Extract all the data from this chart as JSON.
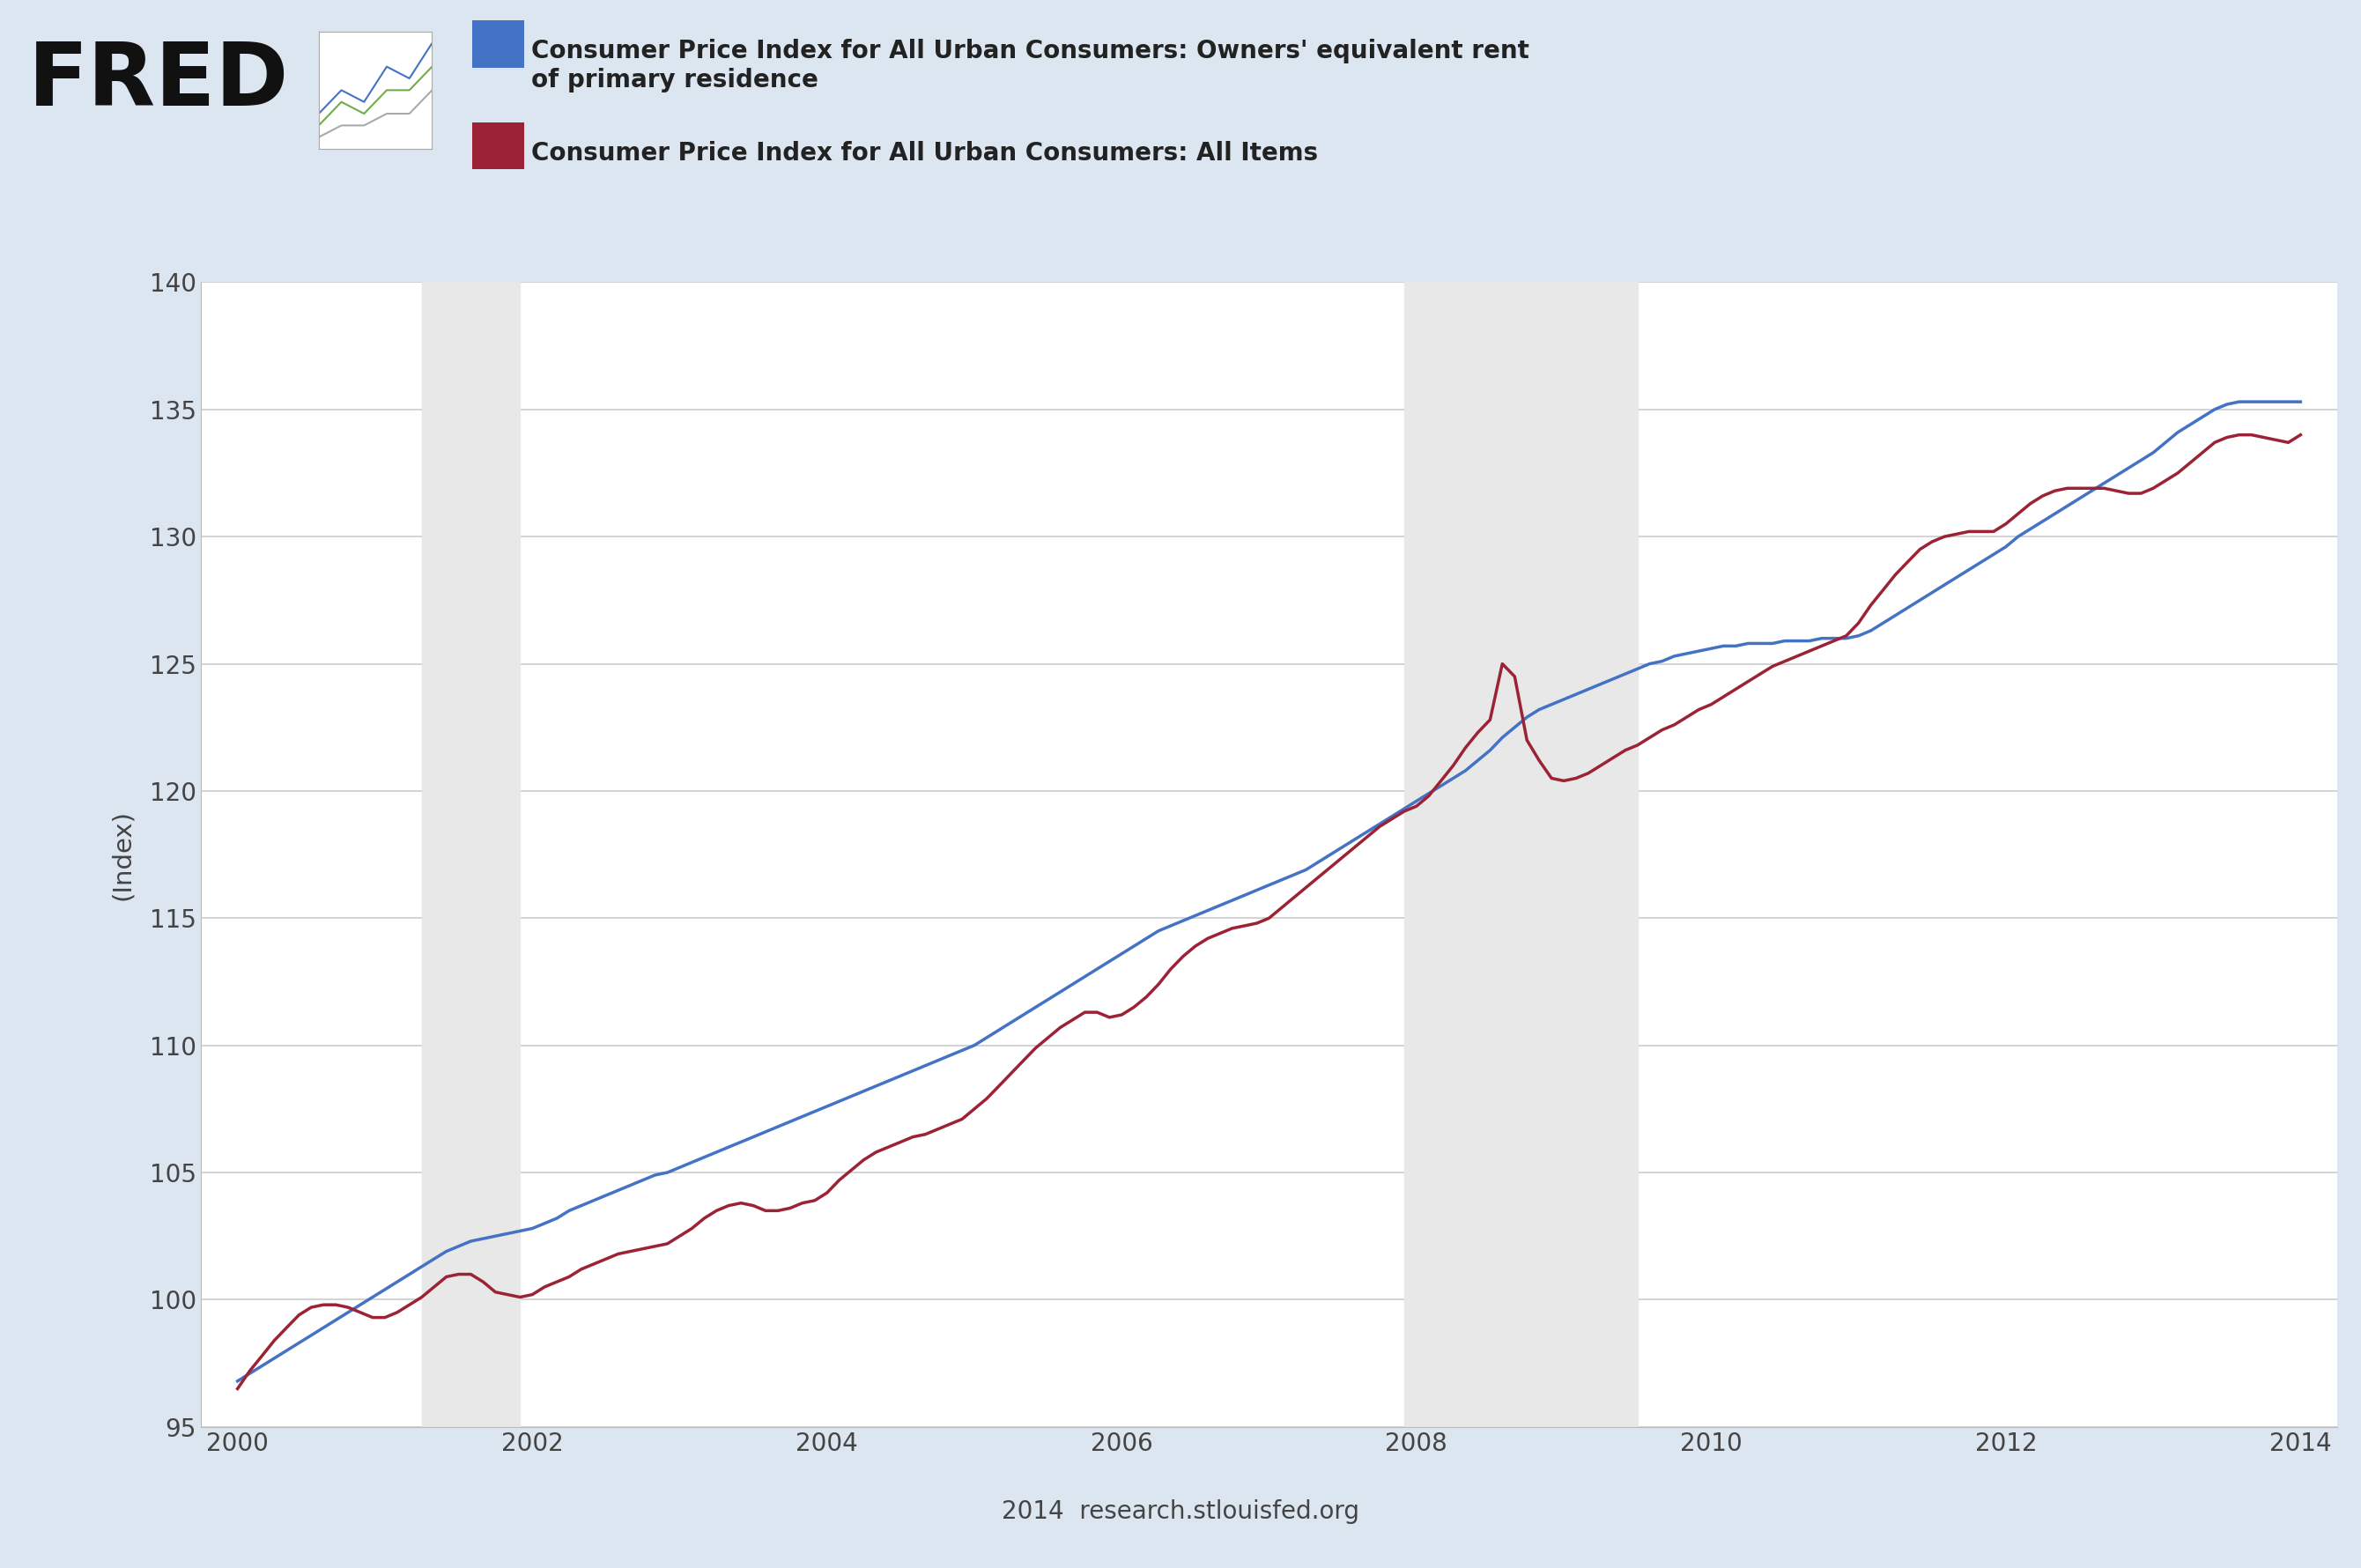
{
  "fig_background_color": "#dce6f0",
  "plot_background_color": "#ffffff",
  "recession_bands": [
    {
      "start": 2001.25,
      "end": 2001.917
    },
    {
      "start": 2007.917,
      "end": 2009.5
    }
  ],
  "recession_color": "#e8e8e8",
  "grid_color": "#cccccc",
  "ylabel": "(Index)",
  "ylim": [
    95,
    140
  ],
  "yticks": [
    95,
    100,
    105,
    110,
    115,
    120,
    125,
    130,
    135,
    140
  ],
  "xlim": [
    1999.75,
    2014.25
  ],
  "xticks": [
    2000,
    2002,
    2004,
    2006,
    2008,
    2010,
    2012,
    2014
  ],
  "source_text": "2014  research.stlouisfed.org",
  "legend_entries": [
    {
      "label": "Consumer Price Index for All Urban Consumers: Owners' equivalent rent\nof primary residence",
      "color": "#4472c4",
      "linestyle": "-",
      "linewidth": 2.5
    },
    {
      "label": "Consumer Price Index for All Urban Consumers: All Items",
      "color": "#9b2335",
      "linestyle": "-",
      "linewidth": 2.5
    }
  ],
  "oerent_x": [
    2000.0,
    2000.083,
    2000.167,
    2000.25,
    2000.333,
    2000.417,
    2000.5,
    2000.583,
    2000.667,
    2000.75,
    2000.833,
    2000.917,
    2001.0,
    2001.083,
    2001.167,
    2001.25,
    2001.333,
    2001.417,
    2001.5,
    2001.583,
    2001.667,
    2001.75,
    2001.833,
    2001.917,
    2002.0,
    2002.083,
    2002.167,
    2002.25,
    2002.333,
    2002.417,
    2002.5,
    2002.583,
    2002.667,
    2002.75,
    2002.833,
    2002.917,
    2003.0,
    2003.083,
    2003.167,
    2003.25,
    2003.333,
    2003.417,
    2003.5,
    2003.583,
    2003.667,
    2003.75,
    2003.833,
    2003.917,
    2004.0,
    2004.083,
    2004.167,
    2004.25,
    2004.333,
    2004.417,
    2004.5,
    2004.583,
    2004.667,
    2004.75,
    2004.833,
    2004.917,
    2005.0,
    2005.083,
    2005.167,
    2005.25,
    2005.333,
    2005.417,
    2005.5,
    2005.583,
    2005.667,
    2005.75,
    2005.833,
    2005.917,
    2006.0,
    2006.083,
    2006.167,
    2006.25,
    2006.333,
    2006.417,
    2006.5,
    2006.583,
    2006.667,
    2006.75,
    2006.833,
    2006.917,
    2007.0,
    2007.083,
    2007.167,
    2007.25,
    2007.333,
    2007.417,
    2007.5,
    2007.583,
    2007.667,
    2007.75,
    2007.833,
    2007.917,
    2008.0,
    2008.083,
    2008.167,
    2008.25,
    2008.333,
    2008.417,
    2008.5,
    2008.583,
    2008.667,
    2008.75,
    2008.833,
    2008.917,
    2009.0,
    2009.083,
    2009.167,
    2009.25,
    2009.333,
    2009.417,
    2009.5,
    2009.583,
    2009.667,
    2009.75,
    2009.833,
    2009.917,
    2010.0,
    2010.083,
    2010.167,
    2010.25,
    2010.333,
    2010.417,
    2010.5,
    2010.583,
    2010.667,
    2010.75,
    2010.833,
    2010.917,
    2011.0,
    2011.083,
    2011.167,
    2011.25,
    2011.333,
    2011.417,
    2011.5,
    2011.583,
    2011.667,
    2011.75,
    2011.833,
    2011.917,
    2012.0,
    2012.083,
    2012.167,
    2012.25,
    2012.333,
    2012.417,
    2012.5,
    2012.583,
    2012.667,
    2012.75,
    2012.833,
    2012.917,
    2013.0,
    2013.083,
    2013.167,
    2013.25,
    2013.333,
    2013.417,
    2013.5,
    2013.583,
    2013.667,
    2013.75,
    2013.833,
    2013.917,
    2014.0
  ],
  "oerent_y": [
    96.8,
    97.1,
    97.4,
    97.7,
    98.0,
    98.3,
    98.6,
    98.9,
    99.2,
    99.5,
    99.8,
    100.1,
    100.4,
    100.7,
    101.0,
    101.3,
    101.6,
    101.9,
    102.1,
    102.3,
    102.4,
    102.5,
    102.6,
    102.7,
    102.8,
    103.0,
    103.2,
    103.5,
    103.7,
    103.9,
    104.1,
    104.3,
    104.5,
    104.7,
    104.9,
    105.0,
    105.2,
    105.4,
    105.6,
    105.8,
    106.0,
    106.2,
    106.4,
    106.6,
    106.8,
    107.0,
    107.2,
    107.4,
    107.6,
    107.8,
    108.0,
    108.2,
    108.4,
    108.6,
    108.8,
    109.0,
    109.2,
    109.4,
    109.6,
    109.8,
    110.0,
    110.3,
    110.6,
    110.9,
    111.2,
    111.5,
    111.8,
    112.1,
    112.4,
    112.7,
    113.0,
    113.3,
    113.6,
    113.9,
    114.2,
    114.5,
    114.7,
    114.9,
    115.1,
    115.3,
    115.5,
    115.7,
    115.9,
    116.1,
    116.3,
    116.5,
    116.7,
    116.9,
    117.2,
    117.5,
    117.8,
    118.1,
    118.4,
    118.7,
    119.0,
    119.3,
    119.6,
    119.9,
    120.2,
    120.5,
    120.8,
    121.2,
    121.6,
    122.1,
    122.5,
    122.9,
    123.2,
    123.4,
    123.6,
    123.8,
    124.0,
    124.2,
    124.4,
    124.6,
    124.8,
    125.0,
    125.1,
    125.3,
    125.4,
    125.5,
    125.6,
    125.7,
    125.7,
    125.8,
    125.8,
    125.8,
    125.9,
    125.9,
    125.9,
    126.0,
    126.0,
    126.0,
    126.1,
    126.3,
    126.6,
    126.9,
    127.2,
    127.5,
    127.8,
    128.1,
    128.4,
    128.7,
    129.0,
    129.3,
    129.6,
    130.0,
    130.3,
    130.6,
    130.9,
    131.2,
    131.5,
    131.8,
    132.1,
    132.4,
    132.7,
    133.0,
    133.3,
    133.7,
    134.1,
    134.4,
    134.7,
    135.0,
    135.2,
    135.3,
    135.3,
    135.3,
    135.3,
    135.3,
    135.3
  ],
  "allitems_x": [
    2000.0,
    2000.083,
    2000.167,
    2000.25,
    2000.333,
    2000.417,
    2000.5,
    2000.583,
    2000.667,
    2000.75,
    2000.833,
    2000.917,
    2001.0,
    2001.083,
    2001.167,
    2001.25,
    2001.333,
    2001.417,
    2001.5,
    2001.583,
    2001.667,
    2001.75,
    2001.833,
    2001.917,
    2002.0,
    2002.083,
    2002.167,
    2002.25,
    2002.333,
    2002.417,
    2002.5,
    2002.583,
    2002.667,
    2002.75,
    2002.833,
    2002.917,
    2003.0,
    2003.083,
    2003.167,
    2003.25,
    2003.333,
    2003.417,
    2003.5,
    2003.583,
    2003.667,
    2003.75,
    2003.833,
    2003.917,
    2004.0,
    2004.083,
    2004.167,
    2004.25,
    2004.333,
    2004.417,
    2004.5,
    2004.583,
    2004.667,
    2004.75,
    2004.833,
    2004.917,
    2005.0,
    2005.083,
    2005.167,
    2005.25,
    2005.333,
    2005.417,
    2005.5,
    2005.583,
    2005.667,
    2005.75,
    2005.833,
    2005.917,
    2006.0,
    2006.083,
    2006.167,
    2006.25,
    2006.333,
    2006.417,
    2006.5,
    2006.583,
    2006.667,
    2006.75,
    2006.833,
    2006.917,
    2007.0,
    2007.083,
    2007.167,
    2007.25,
    2007.333,
    2007.417,
    2007.5,
    2007.583,
    2007.667,
    2007.75,
    2007.833,
    2007.917,
    2008.0,
    2008.083,
    2008.167,
    2008.25,
    2008.333,
    2008.417,
    2008.5,
    2008.583,
    2008.667,
    2008.75,
    2008.833,
    2008.917,
    2009.0,
    2009.083,
    2009.167,
    2009.25,
    2009.333,
    2009.417,
    2009.5,
    2009.583,
    2009.667,
    2009.75,
    2009.833,
    2009.917,
    2010.0,
    2010.083,
    2010.167,
    2010.25,
    2010.333,
    2010.417,
    2010.5,
    2010.583,
    2010.667,
    2010.75,
    2010.833,
    2010.917,
    2011.0,
    2011.083,
    2011.167,
    2011.25,
    2011.333,
    2011.417,
    2011.5,
    2011.583,
    2011.667,
    2011.75,
    2011.833,
    2011.917,
    2012.0,
    2012.083,
    2012.167,
    2012.25,
    2012.333,
    2012.417,
    2012.5,
    2012.583,
    2012.667,
    2012.75,
    2012.833,
    2012.917,
    2013.0,
    2013.083,
    2013.167,
    2013.25,
    2013.333,
    2013.417,
    2013.5,
    2013.583,
    2013.667,
    2013.75,
    2013.833,
    2013.917,
    2014.0
  ],
  "allitems_y": [
    96.5,
    97.2,
    97.8,
    98.4,
    98.9,
    99.4,
    99.7,
    99.8,
    99.8,
    99.7,
    99.5,
    99.3,
    99.3,
    99.5,
    99.8,
    100.1,
    100.5,
    100.9,
    101.0,
    101.0,
    100.7,
    100.3,
    100.2,
    100.1,
    100.2,
    100.5,
    100.7,
    100.9,
    101.2,
    101.4,
    101.6,
    101.8,
    101.9,
    102.0,
    102.1,
    102.2,
    102.5,
    102.8,
    103.2,
    103.5,
    103.7,
    103.8,
    103.7,
    103.5,
    103.5,
    103.6,
    103.8,
    103.9,
    104.2,
    104.7,
    105.1,
    105.5,
    105.8,
    106.0,
    106.2,
    106.4,
    106.5,
    106.7,
    106.9,
    107.1,
    107.5,
    107.9,
    108.4,
    108.9,
    109.4,
    109.9,
    110.3,
    110.7,
    111.0,
    111.3,
    111.3,
    111.1,
    111.2,
    111.5,
    111.9,
    112.4,
    113.0,
    113.5,
    113.9,
    114.2,
    114.4,
    114.6,
    114.7,
    114.8,
    115.0,
    115.4,
    115.8,
    116.2,
    116.6,
    117.0,
    117.4,
    117.8,
    118.2,
    118.6,
    118.9,
    119.2,
    119.4,
    119.8,
    120.4,
    121.0,
    121.7,
    122.3,
    122.8,
    125.0,
    124.5,
    122.0,
    121.2,
    120.5,
    120.4,
    120.5,
    120.7,
    121.0,
    121.3,
    121.6,
    121.8,
    122.1,
    122.4,
    122.6,
    122.9,
    123.2,
    123.4,
    123.7,
    124.0,
    124.3,
    124.6,
    124.9,
    125.1,
    125.3,
    125.5,
    125.7,
    125.9,
    126.1,
    126.6,
    127.3,
    127.9,
    128.5,
    129.0,
    129.5,
    129.8,
    130.0,
    130.1,
    130.2,
    130.2,
    130.2,
    130.5,
    130.9,
    131.3,
    131.6,
    131.8,
    131.9,
    131.9,
    131.9,
    131.9,
    131.8,
    131.7,
    131.7,
    131.9,
    132.2,
    132.5,
    132.9,
    133.3,
    133.7,
    133.9,
    134.0,
    134.0,
    133.9,
    133.8,
    133.7,
    134.0
  ]
}
